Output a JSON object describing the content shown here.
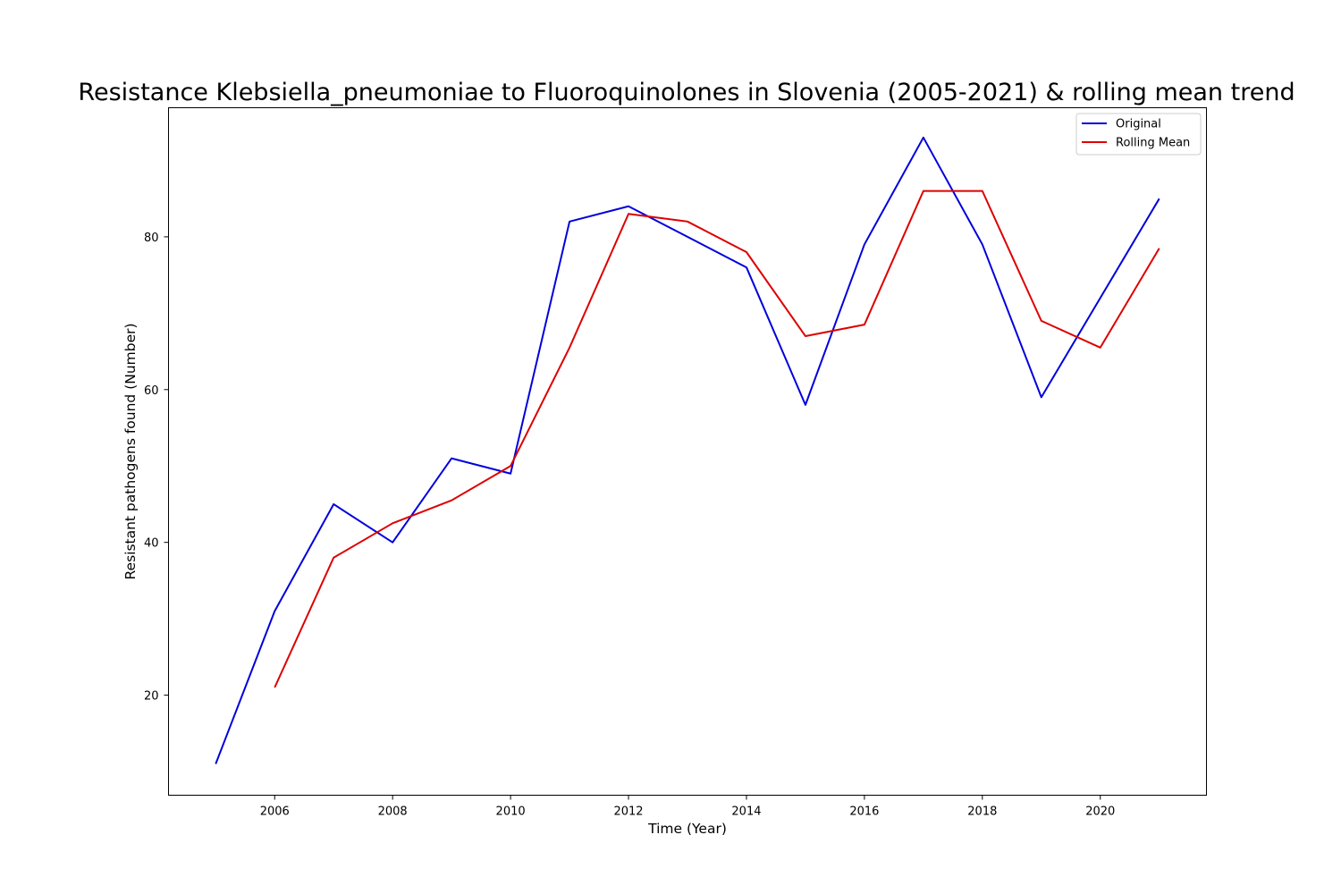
{
  "chart_data": {
    "type": "line",
    "title": "Resistance Klebsiella_pneumoniae to Fluoroquinolones in Slovenia (2005-2021) & rolling mean trend",
    "xlabel": "Time (Year)",
    "ylabel": "Resistant pathogens found (Number)",
    "x": [
      2005,
      2006,
      2007,
      2008,
      2009,
      2010,
      2011,
      2012,
      2013,
      2014,
      2015,
      2016,
      2017,
      2018,
      2019,
      2020,
      2021
    ],
    "xlim": [
      2004.2,
      2021.8
    ],
    "ylim": [
      6.9,
      96.9
    ],
    "xticks": [
      2006,
      2008,
      2010,
      2012,
      2014,
      2016,
      2018,
      2020
    ],
    "yticks": [
      20,
      40,
      60,
      80
    ],
    "grid": false,
    "legend_position": "upper right",
    "series": [
      {
        "name": "Original",
        "color": "#0000dd",
        "values": [
          11,
          31,
          45,
          40,
          51,
          49,
          82,
          84,
          80,
          76,
          58,
          79,
          93,
          79,
          59,
          72,
          85
        ]
      },
      {
        "name": "Rolling Mean",
        "color": "#dd0000",
        "values": [
          null,
          21,
          38,
          42.5,
          45.5,
          50,
          65.5,
          83,
          82,
          78,
          67,
          68.5,
          86,
          86,
          69,
          65.5,
          78.5
        ]
      }
    ]
  }
}
